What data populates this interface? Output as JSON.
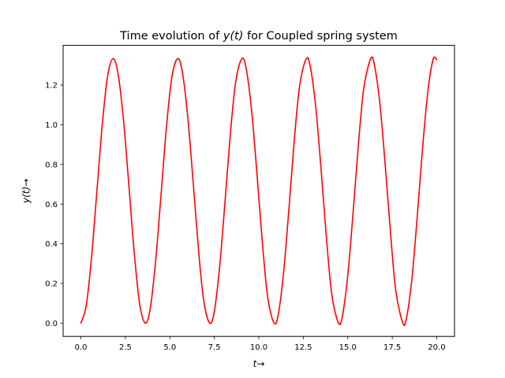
{
  "chart_data": {
    "type": "line",
    "title_prefix": "Time evolution of ",
    "title_math": "y(t)",
    "title_suffix": " for Coupled spring system",
    "xlabel": "t→",
    "ylabel": "y(t)→",
    "xlim": [
      -1.0,
      21.0
    ],
    "ylim": [
      -0.067,
      1.4
    ],
    "xticks": [
      0.0,
      2.5,
      5.0,
      7.5,
      10.0,
      12.5,
      15.0,
      17.5,
      20.0
    ],
    "xtick_labels": [
      "0.0",
      "2.5",
      "5.0",
      "7.5",
      "10.0",
      "12.5",
      "15.0",
      "17.5",
      "20.0"
    ],
    "yticks": [
      0.0,
      0.2,
      0.4,
      0.6,
      0.8,
      1.0,
      1.2
    ],
    "ytick_labels": [
      "0.0",
      "0.2",
      "0.4",
      "0.6",
      "0.8",
      "1.0",
      "1.2"
    ],
    "grid": false,
    "series": [
      {
        "color": "#ff0000",
        "x": [
          0.0,
          0.3,
          0.6,
          0.9,
          1.2,
          1.5,
          1.81,
          2.1,
          2.4,
          2.7,
          3.0,
          3.3,
          3.62,
          3.9,
          4.2,
          4.5,
          4.8,
          5.1,
          5.43,
          5.7,
          6.0,
          6.3,
          6.6,
          6.9,
          7.24,
          7.5,
          7.8,
          8.1,
          8.4,
          8.7,
          9.05,
          9.3,
          9.6,
          9.9,
          10.2,
          10.5,
          10.86,
          11.1,
          11.4,
          11.7,
          12.0,
          12.3,
          12.67,
          12.9,
          13.2,
          13.5,
          13.8,
          14.1,
          14.48,
          14.7,
          15.0,
          15.3,
          15.6,
          15.9,
          16.29,
          16.5,
          16.8,
          17.1,
          17.4,
          17.7,
          18.1,
          18.3,
          18.6,
          18.9,
          19.2,
          19.5,
          19.8,
          20.0
        ],
        "y": [
          0.0,
          0.089,
          0.333,
          0.667,
          1.0,
          1.244,
          1.333,
          1.25,
          1.018,
          0.69,
          0.351,
          0.098,
          0.0,
          0.076,
          0.313,
          0.643,
          0.979,
          1.232,
          1.333,
          1.266,
          1.045,
          0.722,
          0.381,
          0.115,
          0.0,
          0.06,
          0.286,
          0.612,
          0.953,
          1.216,
          1.333,
          1.278,
          1.067,
          0.748,
          0.406,
          0.13,
          0.0,
          0.047,
          0.262,
          0.584,
          0.928,
          1.2,
          1.333,
          1.29,
          1.09,
          0.775,
          0.432,
          0.146,
          0.0,
          0.036,
          0.24,
          0.557,
          0.902,
          1.183,
          1.333,
          1.3,
          1.112,
          0.803,
          0.459,
          0.164,
          0.0,
          0.026,
          0.218,
          0.53,
          0.876,
          1.166,
          1.33,
          1.327
        ]
      }
    ]
  }
}
